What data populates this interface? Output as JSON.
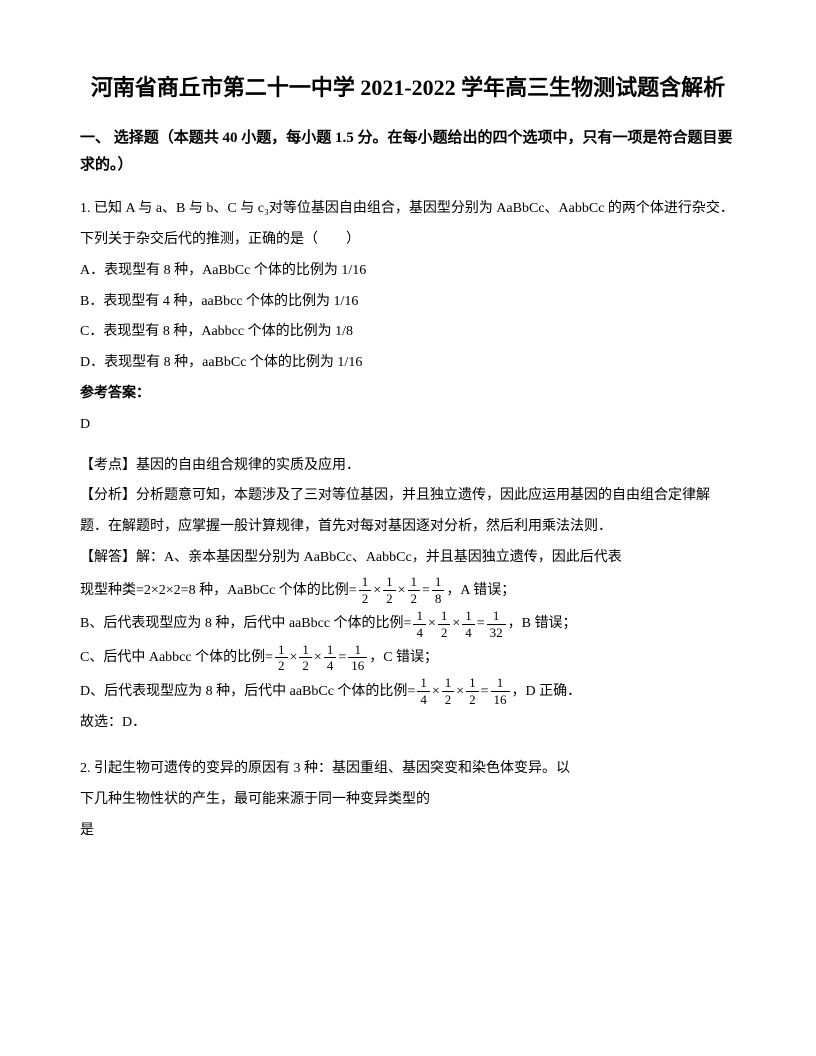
{
  "title": "河南省商丘市第二十一中学 2021-2022 学年高三生物测试题含解析",
  "section_header": "一、 选择题（本题共 40 小题，每小题 1.5 分。在每小题给出的四个选项中，只有一项是符合题目要求的。）",
  "q1": {
    "stem": "1. 已知 A 与 a、B 与 b、C 与 c₃对等位基因自由组合，基因型分别为 AaBbCc、AabbCc 的两个体进行杂交．下列关于杂交后代的推测，正确的是（　　）",
    "optA": "A．表现型有 8 种，AaBbCc 个体的比例为 1/16",
    "optB": "B．表现型有 4 种，aaBbcc 个体的比例为 1/16",
    "optC": "C．表现型有 8 种，Aabbcc 个体的比例为 1/8",
    "optD": "D．表现型有 8 种，aaBbCc 个体的比例为 1/16",
    "answer_label": "参考答案：",
    "answer": "D",
    "point": "【考点】基因的自由组合规律的实质及应用．",
    "analysis1": "【分析】分析题意可知，本题涉及了三对等位基因，并且独立遗传，因此应运用基因的自由组合定律解题．在解题时，应掌握一般计算规律，首先对每对基因逐对分析，然后利用乘法法则．",
    "solve_intro": "【解答】解：A、亲本基因型分别为 AaBbCc、AabbCc，并且基因独立遗传，因此后代表",
    "lineA_pre": "现型种类=2×2×2=8 种，AaBbCc 个体的比例=",
    "lineA_suf": "，A 错误；",
    "lineB_pre": "B、后代表现型应为 8 种，后代中 aaBbcc 个体的比例=",
    "lineB_suf": "，B 错误；",
    "lineC_pre": "C、后代中 Aabbcc 个体的比例=",
    "lineC_suf": "，C 错误；",
    "lineD_pre": "D、后代表现型应为 8 种，后代中 aaBbCc 个体的比例=",
    "lineD_suf": "，D 正确．",
    "conclusion": "故选：D．",
    "fractions": {
      "half": "1",
      "half_d": "2",
      "eighth": "1",
      "eighth_d": "8",
      "quarter": "1",
      "quarter_d": "4",
      "thirtytwo": "1",
      "thirtytwo_d": "32",
      "sixteen": "1",
      "sixteen_d": "16"
    }
  },
  "q2": {
    "stem1": "2. 引起生物可遗传的变异的原因有 3 种：基因重组、基因突变和染色体变异。以",
    "stem2": "下几种生物性状的产生，最可能来源于同一种变异类型的",
    "stem3": "是"
  }
}
